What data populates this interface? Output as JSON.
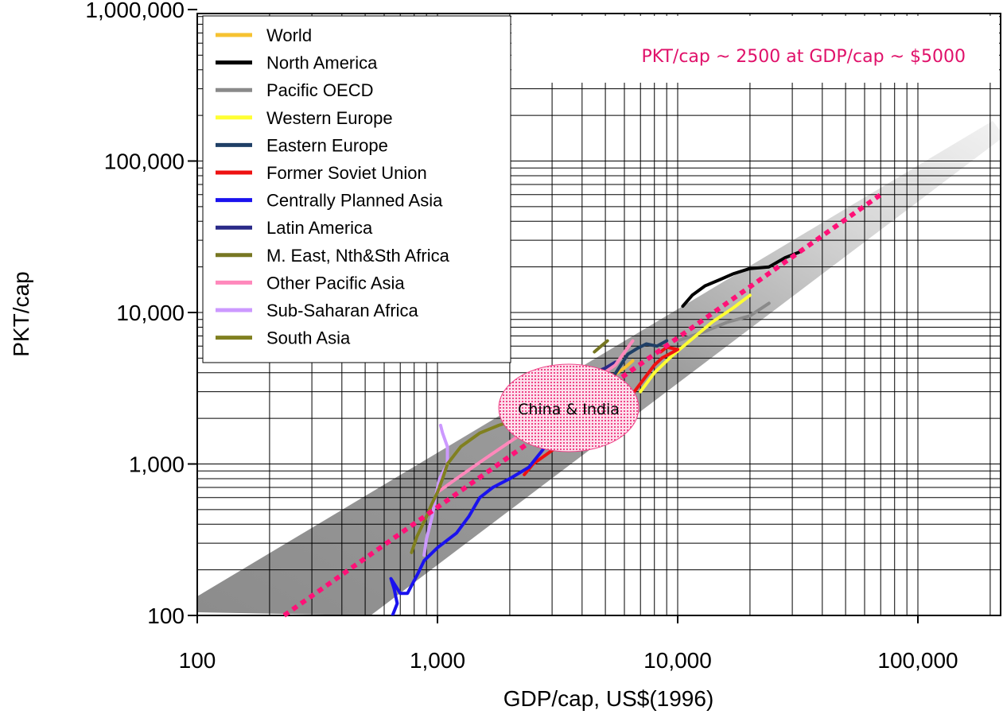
{
  "chart_data": {
    "type": "line",
    "xlabel": "GDP/cap, US$(1996)",
    "ylabel": "PKT/cap",
    "xscale": "log",
    "yscale": "log",
    "xlim": [
      100,
      230000
    ],
    "ylim": [
      100,
      1000000
    ],
    "grid": true,
    "legend_position": "top-left",
    "x_ticks": [
      {
        "value": 100,
        "label": "100"
      },
      {
        "value": 1000,
        "label": "1,000"
      },
      {
        "value": 10000,
        "label": "10,000"
      },
      {
        "value": 100000,
        "label": "100,000"
      }
    ],
    "y_ticks": [
      {
        "value": 100,
        "label": "100"
      },
      {
        "value": 1000,
        "label": "1,000"
      },
      {
        "value": 10000,
        "label": "10,000"
      },
      {
        "value": 100000,
        "label": "100,000"
      },
      {
        "value": 1000000,
        "label": "1,000,000"
      }
    ],
    "series": [
      {
        "name": "World",
        "color": "#f6c231",
        "points": [
          [
            5300,
            3700
          ],
          [
            5600,
            4000
          ],
          [
            6000,
            4300
          ],
          [
            6500,
            4800
          ]
        ]
      },
      {
        "name": "North America",
        "color": "#000000",
        "points": [
          [
            10500,
            11000
          ],
          [
            11500,
            13000
          ],
          [
            13000,
            15000
          ],
          [
            15000,
            16500
          ],
          [
            17000,
            18000
          ],
          [
            20000,
            19500
          ],
          [
            24000,
            20000
          ],
          [
            28000,
            23000
          ],
          [
            32000,
            25000
          ]
        ]
      },
      {
        "name": "Pacific OECD",
        "color": "#8a8a8a",
        "points": [
          [
            10000,
            6500
          ],
          [
            13000,
            7500
          ],
          [
            16000,
            8600
          ],
          [
            20000,
            9500
          ],
          [
            24000,
            11500
          ]
        ]
      },
      {
        "name": "Western Europe",
        "color": "#ffff33",
        "points": [
          [
            7000,
            3000
          ],
          [
            8000,
            4000
          ],
          [
            9500,
            5200
          ],
          [
            11500,
            6700
          ],
          [
            14000,
            8700
          ],
          [
            17000,
            10700
          ],
          [
            20000,
            13000
          ]
        ]
      },
      {
        "name": "Eastern Europe",
        "color": "#1f3f66",
        "points": [
          [
            3200,
            1300
          ],
          [
            3500,
            1300
          ],
          [
            6200,
            5300
          ],
          [
            6800,
            5800
          ],
          [
            7400,
            6200
          ],
          [
            8200,
            6000
          ],
          [
            9000,
            6500
          ]
        ]
      },
      {
        "name": "Former Soviet Union",
        "color": "#ee1111",
        "points": [
          [
            2300,
            850
          ],
          [
            2500,
            1000
          ],
          [
            6600,
            3000
          ],
          [
            7200,
            3600
          ],
          [
            8000,
            4500
          ],
          [
            8600,
            5000
          ],
          [
            9400,
            5400
          ],
          [
            10000,
            5700
          ],
          [
            9000,
            5900
          ],
          [
            8500,
            5500
          ]
        ]
      },
      {
        "name": "Centrally Planned Asia",
        "color": "#1a12ee",
        "points": [
          [
            650,
            100
          ],
          [
            680,
            120
          ],
          [
            660,
            150
          ],
          [
            640,
            175
          ],
          [
            700,
            140
          ],
          [
            750,
            140
          ],
          [
            830,
            190
          ],
          [
            880,
            230
          ],
          [
            1000,
            280
          ],
          [
            1200,
            350
          ],
          [
            1350,
            450
          ],
          [
            1500,
            600
          ],
          [
            1700,
            700
          ],
          [
            2000,
            800
          ],
          [
            2400,
            950
          ],
          [
            2700,
            1200
          ],
          [
            2900,
            1400
          ]
        ]
      },
      {
        "name": "Latin America",
        "color": "#2a2a88",
        "points": [
          [
            4500,
            4000
          ],
          [
            5000,
            4300
          ],
          [
            5500,
            4700
          ]
        ]
      },
      {
        "name": "M. East, Nth&Sth Africa",
        "color": "#777722",
        "points": [
          [
            4500,
            5500
          ],
          [
            4800,
            6000
          ],
          [
            5100,
            6500
          ]
        ]
      },
      {
        "name": "Other Pacific Asia",
        "color": "#ff88bb",
        "points": [
          [
            1000,
            650
          ],
          [
            1200,
            800
          ],
          [
            1400,
            950
          ],
          [
            1600,
            1100
          ],
          [
            2000,
            1400
          ],
          [
            2400,
            1700
          ],
          [
            2900,
            2100
          ],
          [
            3500,
            2600
          ],
          [
            4500,
            3600
          ],
          [
            5500,
            4500
          ],
          [
            6500,
            6500
          ]
        ]
      },
      {
        "name": "Sub-Saharan Africa",
        "color": "#cc99ff",
        "points": [
          [
            880,
            250
          ],
          [
            900,
            320
          ],
          [
            950,
            450
          ],
          [
            980,
            600
          ],
          [
            1020,
            800
          ],
          [
            1100,
            1000
          ],
          [
            1100,
            1300
          ],
          [
            1050,
            1600
          ],
          [
            1030,
            1800
          ]
        ]
      },
      {
        "name": "South Asia",
        "color": "#808020",
        "points": [
          [
            780,
            260
          ],
          [
            820,
            330
          ],
          [
            900,
            450
          ],
          [
            950,
            550
          ],
          [
            1000,
            650
          ],
          [
            1050,
            800
          ],
          [
            1100,
            1000
          ],
          [
            1250,
            1300
          ],
          [
            1500,
            1600
          ],
          [
            1800,
            1800
          ],
          [
            2100,
            1950
          ]
        ]
      }
    ],
    "trend_line": {
      "color": "#ff1177",
      "points": [
        [
          230,
          100
        ],
        [
          70000,
          60000
        ]
      ]
    },
    "band_color": "#9a9a9a",
    "annotations": [
      {
        "text": "PKT/cap ~ 2500 at GDP/cap ~ $5000",
        "color": "#e0116a"
      },
      {
        "text": "China & India",
        "color": "#000000"
      }
    ]
  }
}
